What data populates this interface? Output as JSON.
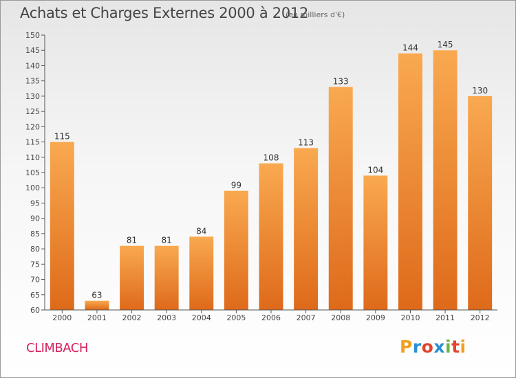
{
  "title": "Achats et Charges Externes 2000 à 2012",
  "subtitle": "(en milliers d'€)",
  "commune": "CLIMBACH",
  "logo": {
    "text": "Proxiti",
    "letter_colors": [
      "#f0a020",
      "#2b8fd8",
      "#e0452b",
      "#2b8fd8",
      "#6db33f",
      "#e0452b",
      "#f0a020"
    ]
  },
  "colors": {
    "bar_light": "#f9a950",
    "bar_dark": "#de6a1a",
    "commune": "#d6225f"
  },
  "chart_data": {
    "type": "bar",
    "title": "Achats et Charges Externes 2000 à 2012",
    "subtitle": "(en milliers d'€)",
    "categories": [
      "2000",
      "2001",
      "2002",
      "2003",
      "2004",
      "2005",
      "2006",
      "2007",
      "2008",
      "2009",
      "2010",
      "2011",
      "2012"
    ],
    "values": [
      115,
      63,
      81,
      81,
      84,
      99,
      108,
      113,
      133,
      104,
      144,
      145,
      130
    ],
    "ylim": [
      60,
      150
    ],
    "ytick_step": 5,
    "grid": false
  }
}
